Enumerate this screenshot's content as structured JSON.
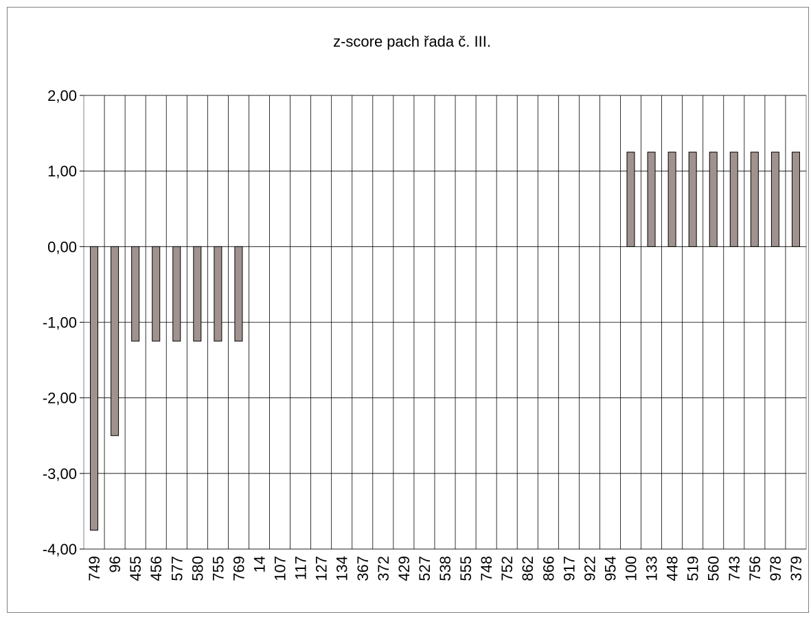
{
  "chart_data": {
    "type": "bar",
    "title": "z-score pach řada č. III.",
    "categories": [
      "749",
      "96",
      "455",
      "456",
      "577",
      "580",
      "755",
      "769",
      "14",
      "107",
      "117",
      "127",
      "134",
      "367",
      "372",
      "429",
      "527",
      "538",
      "555",
      "748",
      "752",
      "862",
      "866",
      "917",
      "922",
      "954",
      "100",
      "133",
      "448",
      "519",
      "560",
      "743",
      "756",
      "978",
      "379"
    ],
    "values": [
      -3.75,
      -2.5,
      -1.25,
      -1.25,
      -1.25,
      -1.25,
      -1.25,
      -1.25,
      0,
      0,
      0,
      0,
      0,
      0,
      0,
      0,
      0,
      0,
      0,
      0,
      0,
      0,
      0,
      0,
      0,
      0,
      1.25,
      1.25,
      1.25,
      1.25,
      1.25,
      1.25,
      1.25,
      1.25,
      1.25
    ],
    "color": "#a0928e",
    "ylim": [
      -4,
      2
    ],
    "yticks": [
      {
        "value": -4,
        "label": "-4,00"
      },
      {
        "value": -3,
        "label": "-3,00"
      },
      {
        "value": -2,
        "label": "-2,00"
      },
      {
        "value": -1,
        "label": "-1,00"
      },
      {
        "value": 0,
        "label": "0,00"
      },
      {
        "value": 1,
        "label": "1,00"
      },
      {
        "value": 2,
        "label": "2,00"
      }
    ],
    "grid": true
  }
}
